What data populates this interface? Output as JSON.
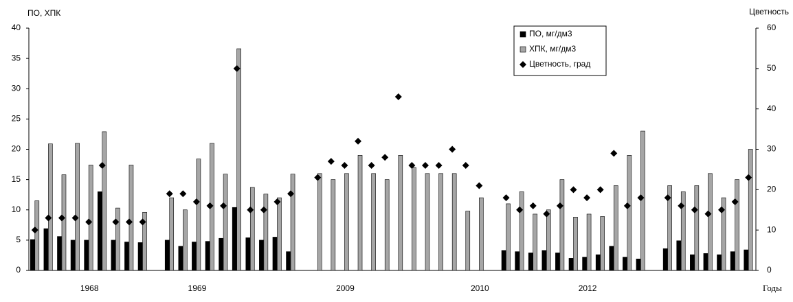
{
  "chart_data": {
    "type": "bar",
    "y_label": "ПО, ХПК",
    "y2_label": "Цветность",
    "x_label": "Годы",
    "categories": [
      null,
      null,
      null,
      null,
      "1968",
      null,
      null,
      null,
      null,
      null,
      null,
      null,
      "1969",
      null,
      null,
      null,
      null,
      null,
      null,
      null,
      null,
      null,
      null,
      "2009",
      null,
      null,
      null,
      null,
      null,
      null,
      null,
      null,
      null,
      "2010",
      null,
      null,
      null,
      null,
      null,
      null,
      null,
      "2012",
      null,
      null,
      null,
      null,
      null,
      null,
      null,
      null,
      null,
      null,
      null,
      null
    ],
    "series": [
      {
        "name": "ПО, мг/дм3",
        "type": "bar",
        "color": "#000000",
        "values": [
          5.1,
          6.9,
          5.6,
          5.0,
          5.0,
          13.0,
          5.0,
          4.7,
          4.6,
          null,
          5.0,
          4.0,
          4.7,
          4.8,
          5.3,
          10.4,
          5.4,
          5.0,
          5.5,
          3.1,
          null,
          null,
          null,
          null,
          null,
          null,
          null,
          null,
          null,
          null,
          null,
          null,
          null,
          null,
          null,
          3.3,
          3.1,
          2.9,
          3.3,
          2.9,
          2.0,
          2.2,
          2.6,
          4.0,
          2.2,
          1.9,
          null,
          3.6,
          4.9,
          2.6,
          2.8,
          2.6,
          3.1,
          3.4
        ]
      },
      {
        "name": "ХПК, мг/дм3",
        "type": "bar",
        "color": "#a6a6a6",
        "values": [
          11.5,
          20.9,
          15.8,
          21.0,
          17.4,
          22.9,
          10.3,
          17.4,
          9.6,
          null,
          12.0,
          10.0,
          18.4,
          21.0,
          15.9,
          36.6,
          13.7,
          12.6,
          12.0,
          15.9,
          null,
          16,
          15,
          16,
          19,
          16,
          15,
          19,
          17,
          16,
          16,
          16,
          9.8,
          12,
          null,
          11,
          13,
          9.3,
          10,
          15,
          8.8,
          9.3,
          8.9,
          14,
          19,
          23,
          null,
          14,
          13,
          14,
          16,
          12,
          15,
          20
        ]
      },
      {
        "name": "Цветность, град",
        "type": "scatter",
        "marker": "diamond",
        "axis": "y2",
        "color": "#000000",
        "values": [
          10,
          13,
          13,
          13,
          12,
          26,
          12,
          12,
          12,
          null,
          19,
          19,
          17,
          16,
          16,
          50,
          15,
          15,
          17,
          19,
          null,
          23,
          27,
          26,
          32,
          26,
          28,
          43,
          26,
          26,
          26,
          30,
          26,
          21,
          null,
          18,
          15,
          16,
          14,
          16,
          20,
          18,
          20,
          29,
          16,
          18,
          null,
          18,
          16,
          15,
          14,
          15,
          17,
          23
        ]
      }
    ],
    "ylim": [
      0,
      40
    ],
    "yticks": [
      0,
      5,
      10,
      15,
      20,
      25,
      30,
      35,
      40
    ],
    "y2lim": [
      0,
      60
    ],
    "y2ticks": [
      0,
      10,
      20,
      30,
      40,
      50,
      60
    ],
    "grid": false,
    "legend": "top-right"
  }
}
